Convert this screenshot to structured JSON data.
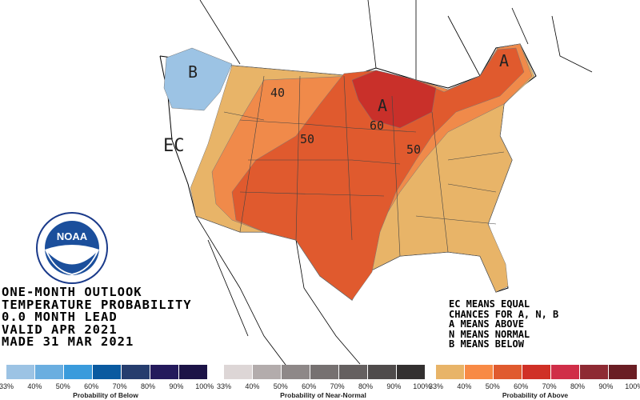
{
  "title_lines": [
    "ONE-MONTH OUTLOOK",
    "TEMPERATURE PROBABILITY",
    "0.0 MONTH LEAD",
    "VALID APR 2021",
    "MADE 31 MAR 2021"
  ],
  "key_lines": [
    "EC MEANS EQUAL",
    "CHANCES FOR A, N, B",
    "A MEANS ABOVE",
    "N MEANS NORMAL",
    "B MEANS BELOW"
  ],
  "map_labels": {
    "b_wa": "B",
    "ec": "EC",
    "c40": "40",
    "c50_west": "50",
    "c60": "60",
    "a_lakes": "A",
    "c50_east": "50",
    "a_maine": "A"
  },
  "logo_text": "NOAA",
  "legends": [
    {
      "title": "Probability of Below",
      "ticks": [
        "33%",
        "40%",
        "50%",
        "60%",
        "70%",
        "80%",
        "90%",
        "100%"
      ],
      "colors": [
        "#9cc3e4",
        "#6aaee0",
        "#3a9bdc",
        "#0a5aa0",
        "#263d6e",
        "#241a5c",
        "#1c1347"
      ]
    },
    {
      "title": "Probability of Near-Normal",
      "ticks": [
        "33%",
        "40%",
        "50%",
        "60%",
        "70%",
        "80%",
        "90%",
        "100%"
      ],
      "colors": [
        "#ddd6d6",
        "#b3acac",
        "#8e8888",
        "#767171",
        "#656060",
        "#4f4b4b",
        "#333030"
      ]
    },
    {
      "title": "Probability of Above",
      "ticks": [
        "33%",
        "40%",
        "50%",
        "60%",
        "70%",
        "80%",
        "90%",
        "100%"
      ],
      "colors": [
        "#e8b468",
        "#f88a45",
        "#e05a2e",
        "#d03026",
        "#d02e48",
        "#8e2a33",
        "#6a1e24"
      ]
    }
  ]
}
